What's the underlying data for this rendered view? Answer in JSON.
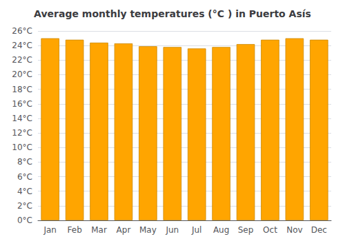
{
  "chart_data": {
    "type": "bar",
    "title": "Average monthly temperatures (°C ) in Puerto Asís",
    "categories": [
      "Jan",
      "Feb",
      "Mar",
      "Apr",
      "May",
      "Jun",
      "Jul",
      "Aug",
      "Sep",
      "Oct",
      "Nov",
      "Dec"
    ],
    "values": [
      25.0,
      24.8,
      24.4,
      24.3,
      23.9,
      23.8,
      23.6,
      23.8,
      24.2,
      24.8,
      25.0,
      24.8
    ],
    "color": "#FFA500",
    "ylim": [
      0,
      26
    ],
    "yticks": [
      {
        "value": 0,
        "label": "0°C"
      },
      {
        "value": 2,
        "label": "2°C"
      },
      {
        "value": 4,
        "label": "4°C"
      },
      {
        "value": 6,
        "label": "6°C"
      },
      {
        "value": 8,
        "label": "8°C"
      },
      {
        "value": 10,
        "label": "10°C"
      },
      {
        "value": 12,
        "label": "12°C"
      },
      {
        "value": 14,
        "label": "14°C"
      },
      {
        "value": 16,
        "label": "16°C"
      },
      {
        "value": 18,
        "label": "18°C"
      },
      {
        "value": 20,
        "label": "20°C"
      },
      {
        "value": 22,
        "label": "22°C"
      },
      {
        "value": 24,
        "label": "24°C"
      },
      {
        "value": 26,
        "label": "26°C"
      }
    ],
    "grid": true
  }
}
